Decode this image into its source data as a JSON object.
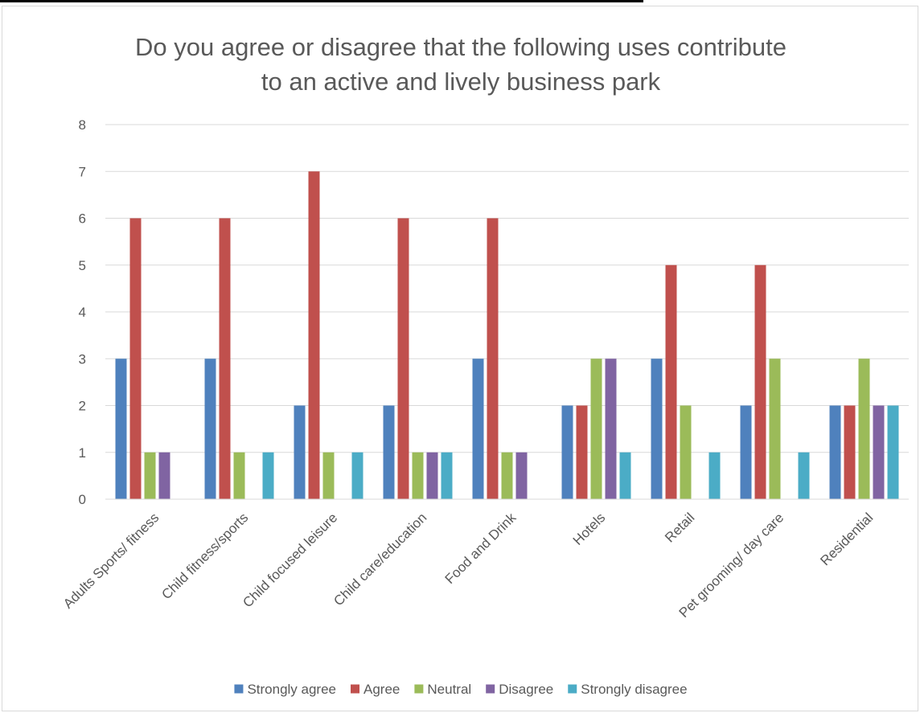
{
  "chart_data": {
    "type": "bar",
    "title_lines": [
      "Do you agree or disagree that the following uses contribute",
      "to an active and lively business park"
    ],
    "categories": [
      "Adults Sports/ fitness",
      "Child fitness/sports",
      "Child focused leisure",
      "Child  care/education",
      "Food and Drink",
      "Hotels",
      "Retail",
      "Pet grooming/ day care",
      "Residential"
    ],
    "series": [
      {
        "name": "Strongly agree",
        "color": "#4f81bd",
        "values": [
          3,
          3,
          2,
          2,
          3,
          2,
          3,
          2,
          2
        ]
      },
      {
        "name": "Agree",
        "color": "#c0504d",
        "values": [
          6,
          6,
          7,
          6,
          6,
          2,
          5,
          5,
          2
        ]
      },
      {
        "name": "Neutral",
        "color": "#9bbb59",
        "values": [
          1,
          1,
          1,
          1,
          1,
          3,
          2,
          3,
          3
        ]
      },
      {
        "name": "Disagree",
        "color": "#8064a2",
        "values": [
          1,
          0,
          0,
          1,
          1,
          3,
          0,
          0,
          2
        ]
      },
      {
        "name": "Strongly disagree",
        "color": "#4bacc6",
        "values": [
          0,
          1,
          1,
          1,
          0,
          1,
          1,
          1,
          2
        ]
      }
    ],
    "y_ticks": [
      0,
      1,
      2,
      3,
      4,
      5,
      6,
      7,
      8
    ],
    "ylim": [
      0,
      8
    ],
    "grid": true,
    "legend_position": "bottom"
  }
}
